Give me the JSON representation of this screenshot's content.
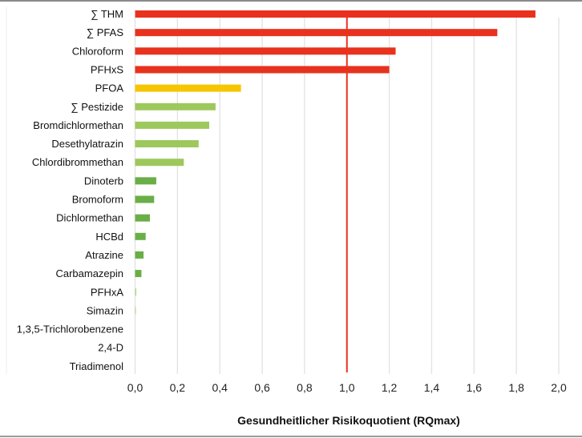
{
  "chart_data": {
    "type": "bar",
    "orientation": "horizontal",
    "xlabel": "Gesundheitlicher Risikoquotient (RQmax)",
    "xlim": [
      0,
      2.0
    ],
    "xticks": [
      "0,0",
      "0,2",
      "0,4",
      "0,6",
      "0,8",
      "1,0",
      "1,2",
      "1,4",
      "1,6",
      "1,8",
      "2,0"
    ],
    "grid": true,
    "reference_line": 1.0,
    "reference_line_color": "#e8321e",
    "categories": [
      "∑ THM",
      "∑ PFAS",
      "Chloroform",
      "PFHxS",
      "PFOA",
      "∑ Pestizide",
      "Bromdichlormethan",
      "Desethylatrazin",
      "Chlordibrommethan",
      "Dinoterb",
      "Bromoform",
      "Dichlormethan",
      "HCBd",
      "Atrazine",
      "Carbamazepin",
      "PFHxA",
      "Simazin",
      "1,3,5-Trichlorobenzene",
      "2,4-D",
      "Triadimenol"
    ],
    "values": [
      1.89,
      1.71,
      1.23,
      1.2,
      0.5,
      0.38,
      0.35,
      0.3,
      0.23,
      0.1,
      0.09,
      0.07,
      0.05,
      0.04,
      0.03,
      0.006,
      0.004,
      0,
      0,
      0
    ],
    "colors": [
      "#e8321e",
      "#e8321e",
      "#e8321e",
      "#e8321e",
      "#f7c600",
      "#9dc85c",
      "#9dc85c",
      "#9dc85c",
      "#9dc85c",
      "#6aae47",
      "#6aae47",
      "#6aae47",
      "#6aae47",
      "#6aae47",
      "#6aae47",
      "#b5d88c",
      "#b5d88c",
      "#b5d88c",
      "#b5d88c",
      "#b5d88c"
    ]
  }
}
